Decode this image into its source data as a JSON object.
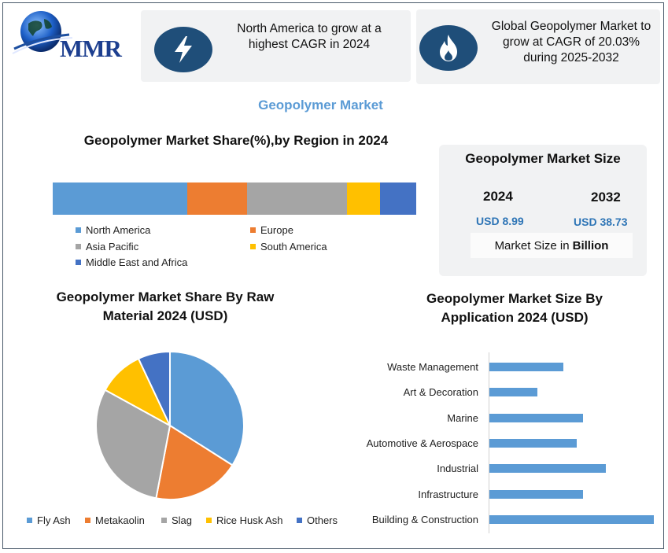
{
  "logo": {
    "text": "MMR",
    "icon": "globe-logo-icon"
  },
  "info_cards": [
    {
      "icon": "lightning-bolt-icon",
      "text_line1": "North America to grow at a",
      "text_line2": "highest CAGR in 2024"
    },
    {
      "icon": "flame-icon",
      "text_line1": "Global Geopolymer Market to",
      "text_line2": "grow at CAGR of 20.03%",
      "text_line3": "during 2025-2032"
    }
  ],
  "main_title": "Geopolymer Market",
  "colors": {
    "blue": "#5b9bd5",
    "orange": "#ed7d31",
    "gray": "#a5a5a5",
    "gold": "#ffc000",
    "darkblue": "#4472c4",
    "title_blue": "#5b9bd5",
    "icon_circle": "#1f4e79"
  },
  "market_size": {
    "title": "Geopolymer Market Size",
    "year_start": "2024",
    "value_start": "USD 8.99",
    "year_end": "2032",
    "value_end": "USD 38.73",
    "note_prefix": "Market Size in",
    "note_unit": "Billion"
  },
  "chart_data": [
    {
      "type": "bar",
      "orientation": "horizontal-stacked-100",
      "title": "Geopolymer Market Share(%),by Region in 2024",
      "categories": [
        "North America",
        "Europe",
        "Asia Pacific",
        "South America",
        "Middle East and Africa"
      ],
      "values": [
        37,
        16.5,
        27.5,
        9,
        10
      ],
      "legend": [
        "North America",
        "Europe",
        "Asia Pacific",
        "South America",
        "Middle East and Africa"
      ],
      "legend_placement": "bottom"
    },
    {
      "type": "pie",
      "title_line1": "Geopolymer Market Share By Raw",
      "title_line2": "Material 2024  (USD)",
      "categories": [
        "Fly Ash",
        "Metakaolin",
        "Slag",
        "Rice Husk Ash",
        "Others"
      ],
      "values": [
        34,
        19,
        30,
        10,
        7
      ],
      "legend_placement": "bottom"
    },
    {
      "type": "bar",
      "orientation": "horizontal",
      "title_line1": "Geopolymer Market Size By",
      "title_line2": "Application 2024  (USD)",
      "categories": [
        "Waste Management",
        "Art & Decoration",
        "Marine",
        "Automotive & Aerospace",
        "Industrial",
        "Infrastructure",
        "Building & Construction"
      ],
      "values": [
        45,
        29,
        57,
        53,
        71,
        57,
        100
      ],
      "xlim": [
        0,
        100
      ],
      "grid": false
    }
  ]
}
